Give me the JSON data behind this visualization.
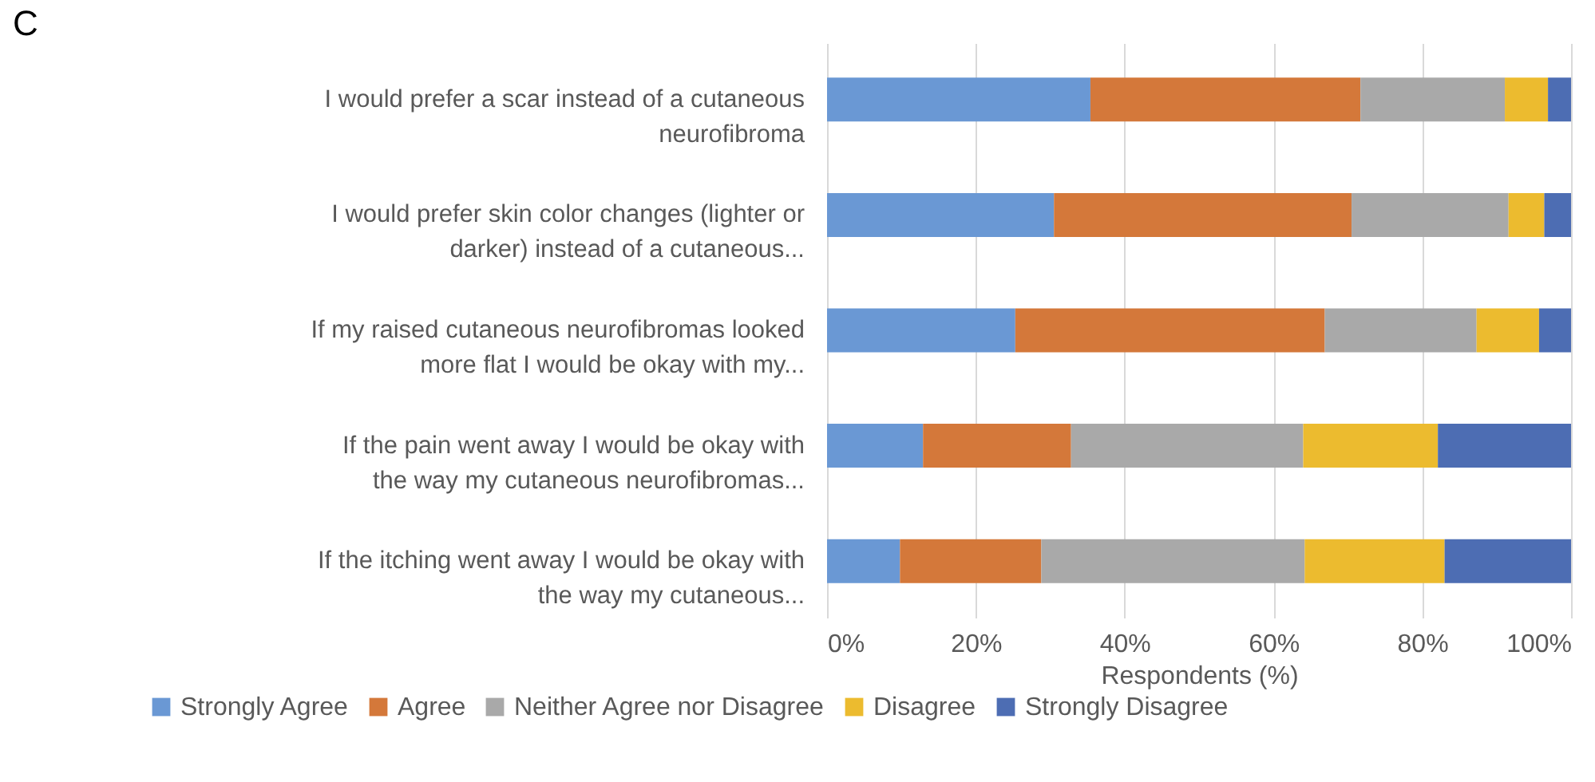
{
  "chart_data": {
    "type": "bar",
    "orientation": "horizontal",
    "stacked": true,
    "title": "C",
    "xlabel": "Respondents (%)",
    "categories": [
      "I would prefer a scar instead of a cutaneous neurofibroma",
      "I would prefer skin color changes (lighter or darker) instead of a cutaneous...",
      "If my raised cutaneous neurofibromas looked more flat I would be okay with my...",
      "If the pain went away I would be okay with the way my cutaneous neurofibromas...",
      "If the itching went away I would be okay with the way my cutaneous..."
    ],
    "series": [
      {
        "name": "Strongly Agree",
        "color": "#6a98d4",
        "values": [
          35.4,
          30.5,
          25.3,
          12.9,
          9.8
        ]
      },
      {
        "name": "Agree",
        "color": "#d4783a",
        "values": [
          36.3,
          40.0,
          41.6,
          19.9,
          19.0
        ]
      },
      {
        "name": "Neither Agree nor Disagree",
        "color": "#a9a9a9",
        "values": [
          19.4,
          21.1,
          20.4,
          31.2,
          35.4
        ]
      },
      {
        "name": "Disagree",
        "color": "#ecbb2f",
        "values": [
          5.8,
          4.8,
          8.4,
          18.1,
          18.8
        ]
      },
      {
        "name": "Strongly Disagree",
        "color": "#4d6db3",
        "values": [
          3.1,
          3.6,
          4.3,
          17.9,
          17.0
        ]
      }
    ],
    "xlim": [
      0,
      100
    ],
    "xticks": [
      {
        "value": 0,
        "label": "0%"
      },
      {
        "value": 20,
        "label": "20%"
      },
      {
        "value": 40,
        "label": "40%"
      },
      {
        "value": 60,
        "label": "60%"
      },
      {
        "value": 80,
        "label": "80%"
      },
      {
        "value": 100,
        "label": "100%"
      }
    ],
    "grid": "x",
    "legend": "bottom"
  }
}
